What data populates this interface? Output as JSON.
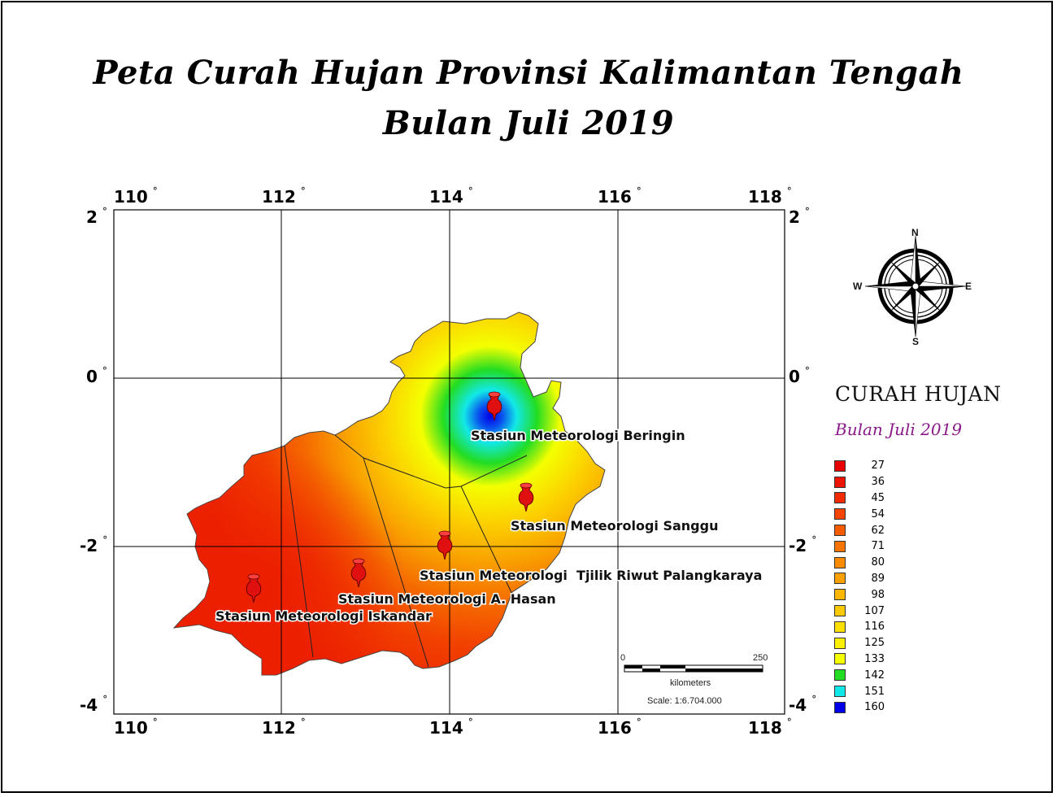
{
  "title": {
    "line1": "Peta Curah Hujan Provinsi Kalimantan Tengah",
    "line2": "Bulan Juli 2019"
  },
  "axes": {
    "longitude_ticks": [
      "110",
      "112",
      "114",
      "116",
      "118"
    ],
    "latitude_ticks": [
      "2",
      "0",
      "-2",
      "-4"
    ],
    "degree_symbol": "°"
  },
  "stations": [
    {
      "label": "Stasiun Meteorologi Beringin"
    },
    {
      "label": "Stasiun Meteorologi Sanggu"
    },
    {
      "label": "Stasiun Meteorologi  Tjilik Riwut Palangkaraya"
    },
    {
      "label": "Stasiun Meteorologi A. Hasan"
    },
    {
      "label": "Stasiun Meteorologi Iskandar"
    }
  ],
  "compass": {
    "n": "N",
    "s": "S",
    "e": "E",
    "w": "W"
  },
  "scale_bar": {
    "start": "0",
    "end": "250",
    "unit": "kilometers",
    "scale": "Scale: 1:6.704.000"
  },
  "legend": {
    "title": "CURAH HUJAN",
    "subtitle": "Bulan Juli 2019",
    "items": [
      {
        "value": "27",
        "color": "#e80000"
      },
      {
        "value": "36",
        "color": "#ee1500"
      },
      {
        "value": "45",
        "color": "#f22a00"
      },
      {
        "value": "54",
        "color": "#f44400"
      },
      {
        "value": "62",
        "color": "#f55c00"
      },
      {
        "value": "71",
        "color": "#f77400"
      },
      {
        "value": "80",
        "color": "#f88b00"
      },
      {
        "value": "89",
        "color": "#faa100"
      },
      {
        "value": "98",
        "color": "#fbb600"
      },
      {
        "value": "107",
        "color": "#fcca00"
      },
      {
        "value": "116",
        "color": "#fde000"
      },
      {
        "value": "125",
        "color": "#fdf000"
      },
      {
        "value": "133",
        "color": "#f4ff00"
      },
      {
        "value": "142",
        "color": "#22dd22"
      },
      {
        "value": "151",
        "color": "#12e8e8"
      },
      {
        "value": "160",
        "color": "#0000e6"
      }
    ]
  }
}
